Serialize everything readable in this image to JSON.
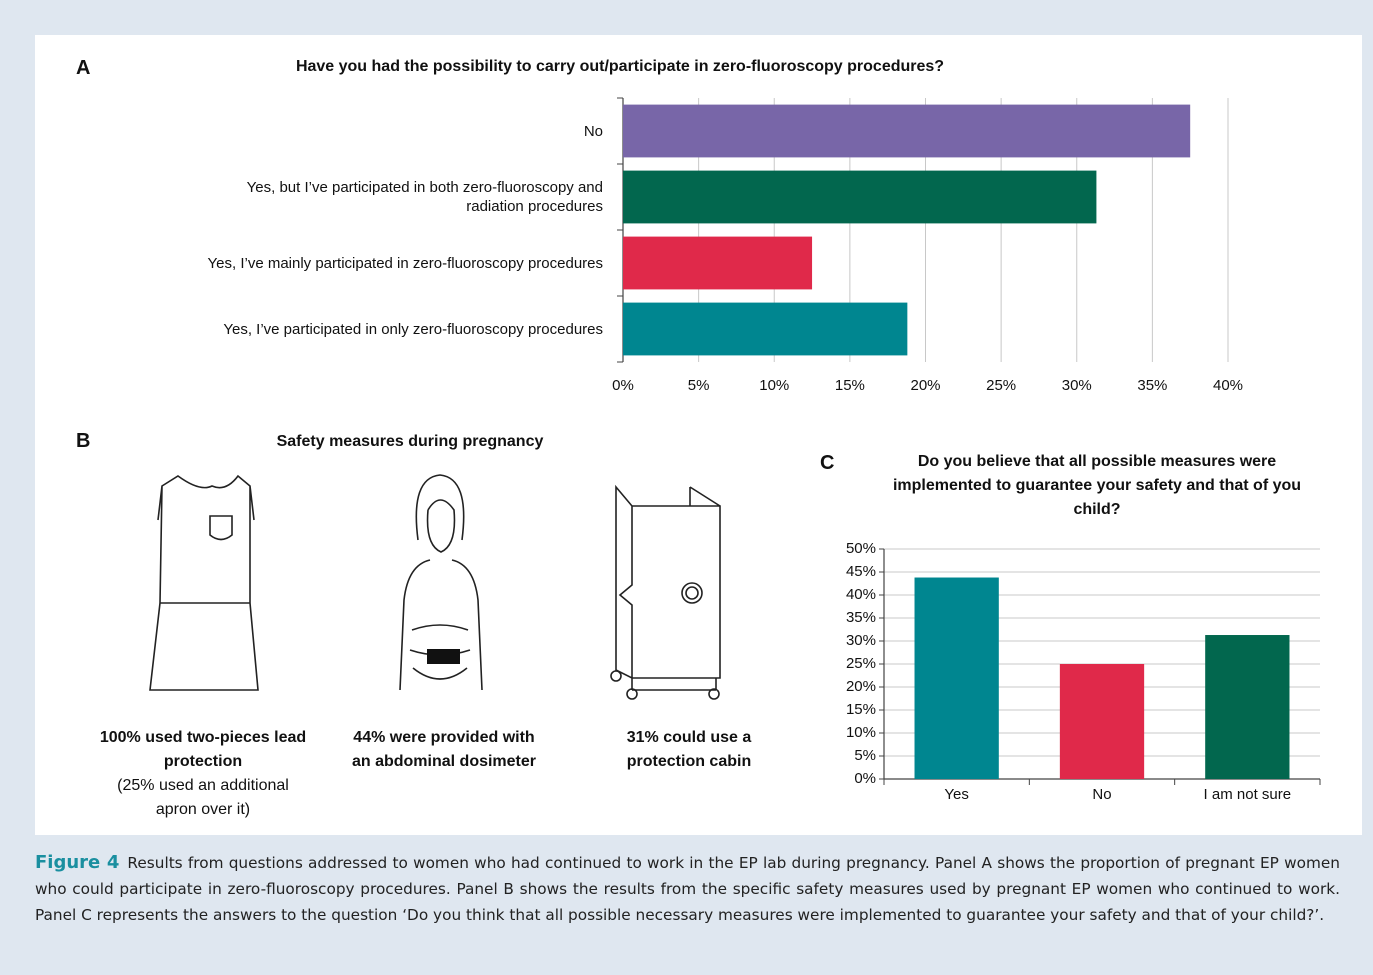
{
  "chart_data": [
    {
      "type": "barh",
      "label": "A",
      "title": "Have you had the possibility to carry out/participate in zero-fluoroscopy procedures?",
      "categories": [
        "No",
        "Yes, but I’ve participated in both zero-fluoroscopy and radiation procedures",
        "Yes, I’ve mainly participated in zero-fluoroscopy procedures",
        "Yes, I’ve participated in only zero-fluoroscopy procedures"
      ],
      "values": [
        37.5,
        31.3,
        12.5,
        18.8
      ],
      "colors": [
        "#7866a8",
        "#02674e",
        "#e0294a",
        "#008690"
      ],
      "xlim": [
        0,
        40
      ],
      "xticks": [
        {
          "value": 0,
          "label": "0%"
        },
        {
          "value": 5,
          "label": "5%"
        },
        {
          "value": 10,
          "label": "10%"
        },
        {
          "value": 15,
          "label": "15%"
        },
        {
          "value": 20,
          "label": "20%"
        },
        {
          "value": 25,
          "label": "25%"
        },
        {
          "value": 30,
          "label": "30%"
        },
        {
          "value": 35,
          "label": "35%"
        },
        {
          "value": 40,
          "label": "40%"
        }
      ],
      "grid": true
    },
    {
      "type": "bar",
      "label": "C",
      "title": "Do you believe that all possible measures were implemented to guarantee your safety and that of you child?",
      "categories": [
        "Yes",
        "No",
        "I am not sure"
      ],
      "values": [
        43.8,
        25,
        31.3
      ],
      "colors": [
        "#008690",
        "#e0294a",
        "#02674e"
      ],
      "ylim": [
        0,
        50
      ],
      "yticks": [
        {
          "value": 0,
          "label": "0%"
        },
        {
          "value": 5,
          "label": "5%"
        },
        {
          "value": 10,
          "label": "10%"
        },
        {
          "value": 15,
          "label": "15%"
        },
        {
          "value": 20,
          "label": "20%"
        },
        {
          "value": 25,
          "label": "25%"
        },
        {
          "value": 30,
          "label": "30%"
        },
        {
          "value": 35,
          "label": "35%"
        },
        {
          "value": 40,
          "label": "40%"
        },
        {
          "value": 45,
          "label": "45%"
        },
        {
          "value": 50,
          "label": "50%"
        }
      ],
      "grid": true
    }
  ],
  "panel_b": {
    "label": "B",
    "title": "Safety measures during pregnancy",
    "items": [
      {
        "text": "100% used two-pieces lead protection",
        "note": "(25% used an additional apron over it)"
      },
      {
        "text": "44% were provided with an abdominal dosimeter"
      },
      {
        "text": "31% could use a protection cabin"
      }
    ]
  },
  "caption": {
    "figure_label": "Figure 4",
    "text": "Results from questions addressed to women who had continued to work in the EP lab during pregnancy. Panel A shows the proportion of pregnant EP women who could participate in zero-fluoroscopy procedures. Panel B shows the results from the specific safety measures used by pregnant EP women who continued to work. Panel C represents the answers to the question ‘Do you think that all possible necessary measures were implemented to guarantee your safety and that of your child?’."
  }
}
